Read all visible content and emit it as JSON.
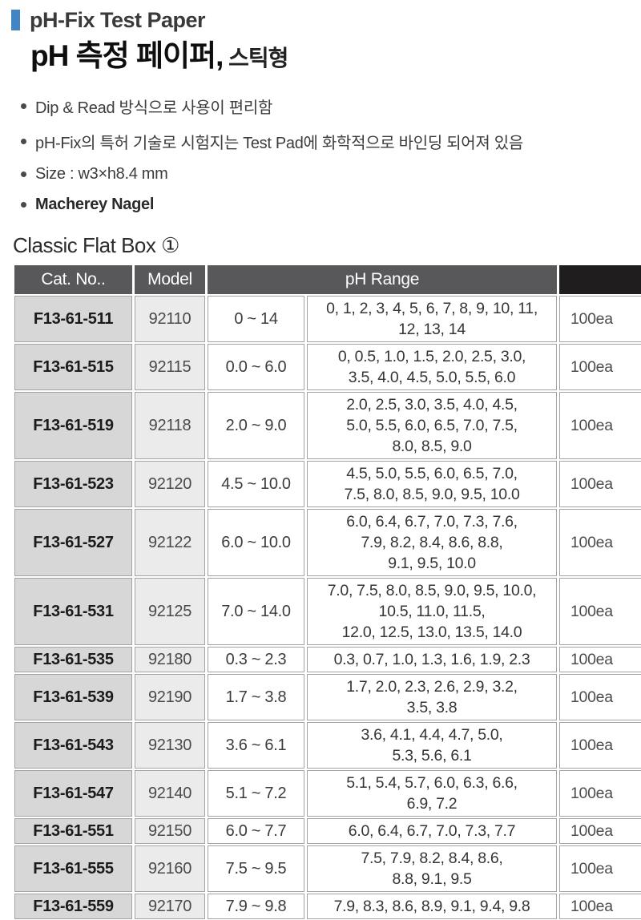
{
  "header": {
    "title_en": "pH-Fix Test Paper",
    "title_ko": "pH 측정 페이퍼,",
    "title_ko_suffix": " 스틱형"
  },
  "features": [
    "Dip & Read 방식으로 사용이 편리함",
    "pH-Fix의 특허 기술로 시험지는 Test Pad에 화학적으로 바인딩 되어져 있음",
    "Size : w3×h8.4 mm",
    "Macherey Nagel"
  ],
  "section": {
    "title": "Classic Flat Box ①"
  },
  "table": {
    "headers": {
      "cat_no": "Cat. No..",
      "model": "Model",
      "ph_range": "pH Range",
      "qty": ""
    },
    "rows": [
      {
        "cat_no": "F13-61-511",
        "model": "92110",
        "range": "0 ~ 14",
        "values": "0, 1, 2, 3, 4, 5, 6, 7, 8, 9, 10, 11,\n12, 13, 14",
        "qty": "100ea"
      },
      {
        "cat_no": "F13-61-515",
        "model": "92115",
        "range": "0.0 ~ 6.0",
        "values": "0, 0.5, 1.0, 1.5, 2.0, 2.5, 3.0,\n3.5, 4.0, 4.5, 5.0, 5.5, 6.0",
        "qty": "100ea"
      },
      {
        "cat_no": "F13-61-519",
        "model": "92118",
        "range": "2.0 ~ 9.0",
        "values": "2.0, 2.5, 3.0, 3.5, 4.0, 4.5,\n5.0, 5.5, 6.0, 6.5, 7.0, 7.5,\n8.0, 8.5, 9.0",
        "qty": "100ea"
      },
      {
        "cat_no": "F13-61-523",
        "model": "92120",
        "range": "4.5 ~ 10.0",
        "values": "4.5, 5.0, 5.5, 6.0, 6.5, 7.0,\n7.5, 8.0, 8.5, 9.0, 9.5, 10.0",
        "qty": "100ea"
      },
      {
        "cat_no": "F13-61-527",
        "model": "92122",
        "range": "6.0 ~ 10.0",
        "values": "6.0, 6.4, 6.7, 7.0, 7.3, 7.6,\n7.9, 8.2, 8.4, 8.6, 8.8,\n9.1, 9.5, 10.0",
        "qty": "100ea"
      },
      {
        "cat_no": "F13-61-531",
        "model": "92125",
        "range": "7.0 ~ 14.0",
        "values": "7.0, 7.5, 8.0, 8.5, 9.0, 9.5, 10.0,\n10.5, 11.0, 11.5,\n12.0, 12.5, 13.0, 13.5, 14.0",
        "qty": "100ea"
      },
      {
        "cat_no": "F13-61-535",
        "model": "92180",
        "range": "0.3 ~ 2.3",
        "values": "0.3, 0.7, 1.0, 1.3, 1.6, 1.9, 2.3",
        "qty": "100ea"
      },
      {
        "cat_no": "F13-61-539",
        "model": "92190",
        "range": "1.7 ~ 3.8",
        "values": "1.7, 2.0, 2.3, 2.6, 2.9, 3.2,\n3.5, 3.8",
        "qty": "100ea"
      },
      {
        "cat_no": "F13-61-543",
        "model": "92130",
        "range": "3.6 ~ 6.1",
        "values": "3.6, 4.1, 4.4, 4.7, 5.0,\n5.3, 5.6, 6.1",
        "qty": "100ea"
      },
      {
        "cat_no": "F13-61-547",
        "model": "92140",
        "range": "5.1 ~ 7.2",
        "values": "5.1, 5.4, 5.7, 6.0, 6.3, 6.6,\n6.9, 7.2",
        "qty": "100ea"
      },
      {
        "cat_no": "F13-61-551",
        "model": "92150",
        "range": "6.0 ~ 7.7",
        "values": "6.0, 6.4, 6.7, 7.0, 7.3, 7.7",
        "qty": "100ea"
      },
      {
        "cat_no": "F13-61-555",
        "model": "92160",
        "range": "7.5 ~ 9.5",
        "values": "7.5, 7.9, 8.2, 8.4, 8.6,\n8.8, 9.1, 9.5",
        "qty": "100ea"
      },
      {
        "cat_no": "F13-61-559",
        "model": "92170",
        "range": "7.9 ~ 9.8",
        "values": "7.9, 8.3, 8.6, 8.9, 9.1, 9.4, 9.8",
        "qty": "100ea"
      }
    ]
  },
  "colors": {
    "accent_blue": "#4285c2",
    "header_bg": "#58585a",
    "header_qty_bg": "#1f1d1e",
    "col_catno_bg": "#d7d7d7",
    "col_model_bg": "#ebebeb",
    "cell_border": "#a3a3a3"
  }
}
